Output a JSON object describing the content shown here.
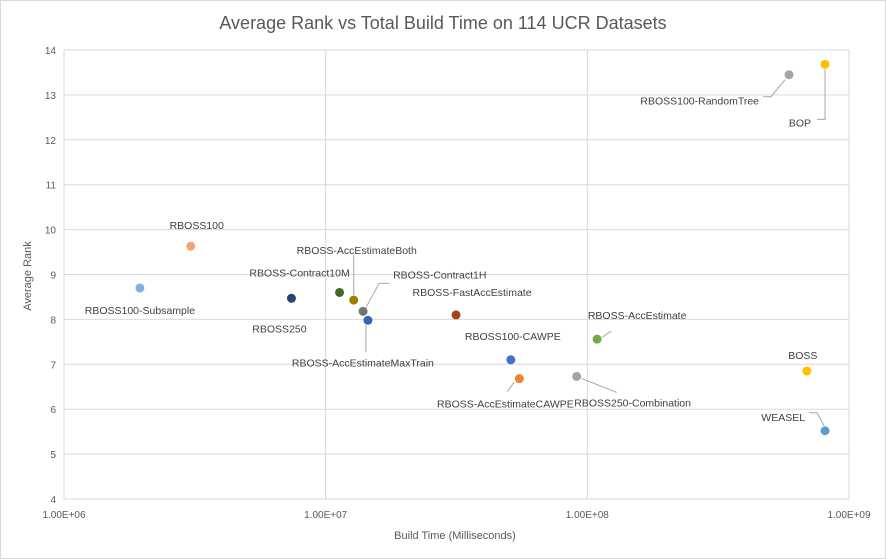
{
  "chart_data": {
    "type": "scatter",
    "title": "Average Rank vs Total Build Time on 114 UCR Datasets",
    "xlabel": "Build Time (Milliseconds)",
    "ylabel": "Average Rank",
    "xscale": "log",
    "xlim": [
      1000000,
      1000000000
    ],
    "ylim": [
      4,
      14
    ],
    "xticks": [
      "1.00E+06",
      "1.00E+07",
      "1.00E+08",
      "1.00E+09"
    ],
    "yticks": [
      "4",
      "5",
      "6",
      "7",
      "8",
      "9",
      "10",
      "11",
      "12",
      "13",
      "14"
    ],
    "grid": "major",
    "legend": "none",
    "points": [
      {
        "name": "RBOSS100-Subsample",
        "x": 1950000,
        "y": 8.7,
        "color": "#7fb2df"
      },
      {
        "name": "RBOSS100",
        "x": 3050000,
        "y": 9.63,
        "color": "#f4a46e"
      },
      {
        "name": "RBOSS250",
        "x": 7400000,
        "y": 8.47,
        "color": "#264478"
      },
      {
        "name": "RBOSS-Contract10M",
        "x": 11300000,
        "y": 8.6,
        "color": "#43682b"
      },
      {
        "name": "RBOSS-AccEstimateBoth",
        "x": 12800000,
        "y": 8.43,
        "color": "#9e8001"
      },
      {
        "name": "RBOSS-Contract1H",
        "x": 13900000,
        "y": 8.18,
        "color": "#757575"
      },
      {
        "name": "RBOSS-AccEstimateMaxTrain",
        "x": 14500000,
        "y": 7.98,
        "color": "#3a66b0"
      },
      {
        "name": "RBOSS-FastAccEstimate",
        "x": 31500000,
        "y": 8.1,
        "color": "#a0461b"
      },
      {
        "name": "RBOSS100-CAWPE",
        "x": 51000000,
        "y": 7.1,
        "color": "#4472c4"
      },
      {
        "name": "RBOSS-AccEstimateCAWPE",
        "x": 55000000,
        "y": 6.68,
        "color": "#f08333"
      },
      {
        "name": "RBOSS250-Combination",
        "x": 91000000,
        "y": 6.73,
        "color": "#a5a5a5"
      },
      {
        "name": "RBOSS-AccEstimate",
        "x": 109000000,
        "y": 7.56,
        "color": "#70ad47"
      },
      {
        "name": "RBOSS100-RandomTree",
        "x": 590000000,
        "y": 13.45,
        "color": "#a5a5a5"
      },
      {
        "name": "BOP",
        "x": 810000000,
        "y": 13.68,
        "color": "#ffc000"
      },
      {
        "name": "BOSS",
        "x": 690000000,
        "y": 6.85,
        "color": "#ffc000"
      },
      {
        "name": "WEASEL",
        "x": 810000000,
        "y": 5.52,
        "color": "#5b9bd5"
      }
    ]
  }
}
